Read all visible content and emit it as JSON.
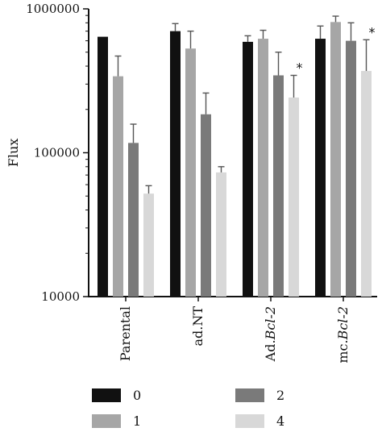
{
  "chart_data": {
    "type": "bar",
    "ylabel": "Flux",
    "xlabel": "",
    "yscale": "log",
    "ylim": [
      10000,
      1000000
    ],
    "yticks": [
      {
        "value": 1000000,
        "label": "1000000"
      },
      {
        "value": 100000,
        "label": "100000"
      },
      {
        "value": 10000,
        "label": "10000"
      }
    ],
    "categories": [
      {
        "label": "Parental",
        "plain": "Parental",
        "italic": ""
      },
      {
        "label": "ad.NT",
        "plain": "ad.NT",
        "italic": ""
      },
      {
        "label": "Ad.Bcl-2",
        "plain": "Ad.",
        "italic": "Bcl-2"
      },
      {
        "label": "mc.Bcl-2",
        "plain": "mc.",
        "italic": "Bcl-2"
      }
    ],
    "series": [
      {
        "name": "0",
        "color": "#111111",
        "values": [
          640000,
          700000,
          590000,
          620000
        ],
        "errors": [
          null,
          790000,
          650000,
          760000
        ]
      },
      {
        "name": "1",
        "color": "#a6a6a6",
        "values": [
          340000,
          530000,
          620000,
          810000
        ],
        "errors": [
          470000,
          700000,
          710000,
          890000
        ]
      },
      {
        "name": "2",
        "color": "#7a7a7a",
        "values": [
          117000,
          185000,
          345000,
          600000
        ],
        "errors": [
          158000,
          260000,
          500000,
          800000
        ]
      },
      {
        "name": "4",
        "color": "#d8d8d8",
        "values": [
          52000,
          73000,
          242000,
          370000
        ],
        "errors": [
          59000,
          80000,
          345000,
          610000
        ]
      }
    ],
    "annotations": [
      {
        "category": 2,
        "series": 3,
        "text": "*"
      },
      {
        "category": 3,
        "series": 3,
        "text": "*"
      }
    ],
    "legend": {
      "position": "bottom",
      "columns": 2
    }
  }
}
